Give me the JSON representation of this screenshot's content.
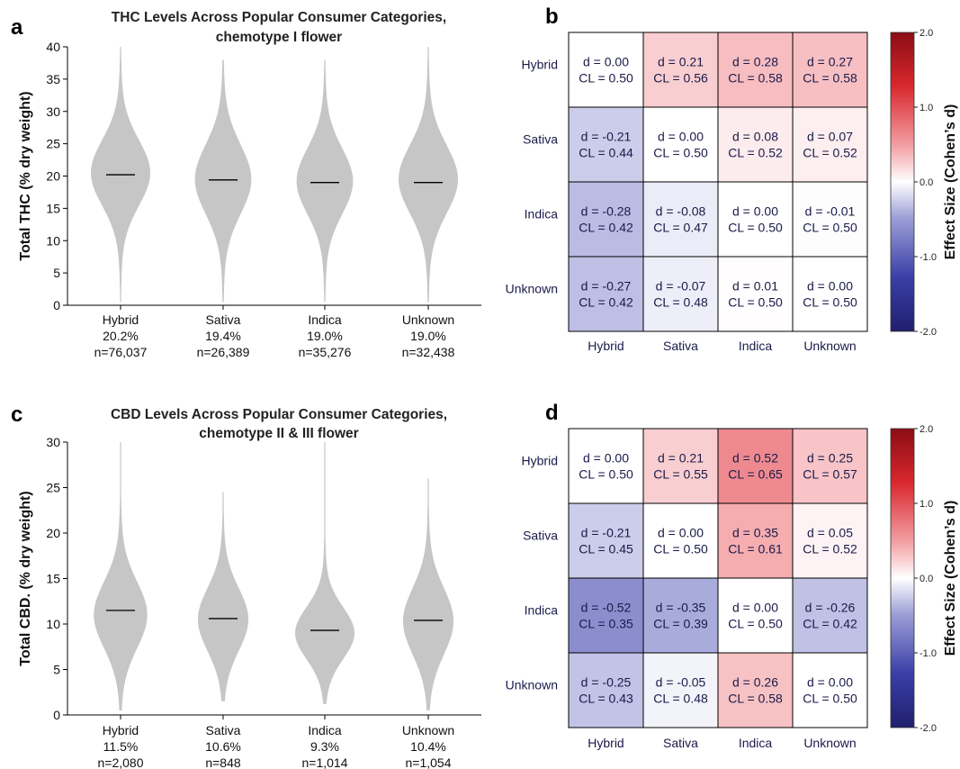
{
  "colors": {
    "violin": "#c6c6c6",
    "median": "#000000",
    "heat_neg": "#1f1f6e",
    "heat_mid": "#ffffff",
    "heat_pos": "#8b0d14",
    "grid": "#000000"
  },
  "chart_data": [
    {
      "type": "violin",
      "panel": "a",
      "title": [
        "THC Levels Across Popular Consumer Categories,",
        "chemotype I flower"
      ],
      "ylabel": "Total THC (% dry weight)",
      "ylim": [
        0,
        40
      ],
      "yticks": [
        0,
        5,
        10,
        15,
        20,
        25,
        30,
        35,
        40
      ],
      "categories": [
        {
          "name": "Hybrid",
          "median_label": "20.2%",
          "n_label": "n=76,037",
          "median": 20.2,
          "min": 0.5,
          "max": 40,
          "peak": 20.5,
          "width": 1.0,
          "spread": 5.0
        },
        {
          "name": "Sativa",
          "median_label": "19.4%",
          "n_label": "n=26,389",
          "median": 19.4,
          "min": 0.5,
          "max": 38,
          "peak": 19.5,
          "width": 0.95,
          "spread": 5.3
        },
        {
          "name": "Indica",
          "median_label": "19.0%",
          "n_label": "n=35,276",
          "median": 19.0,
          "min": 0.5,
          "max": 38,
          "peak": 19.2,
          "width": 0.95,
          "spread": 5.0
        },
        {
          "name": "Unknown",
          "median_label": "19.0%",
          "n_label": "n=32,438",
          "median": 19.0,
          "min": 0.5,
          "max": 40,
          "peak": 19.5,
          "width": 1.0,
          "spread": 5.2
        }
      ]
    },
    {
      "type": "heatmap",
      "panel": "b",
      "rows": [
        "Hybrid",
        "Sativa",
        "Indica",
        "Unknown"
      ],
      "cols": [
        "Hybrid",
        "Sativa",
        "Indica",
        "Unknown"
      ],
      "d": [
        [
          0.0,
          0.21,
          0.28,
          0.27
        ],
        [
          -0.21,
          0.0,
          0.08,
          0.07
        ],
        [
          -0.28,
          -0.08,
          0.0,
          -0.01
        ],
        [
          -0.27,
          -0.07,
          0.01,
          0.0
        ]
      ],
      "cells": [
        [
          "d = 0.00",
          "d = 0.21",
          "d = 0.28",
          "d = 0.27"
        ],
        [
          "d = -0.21",
          "d = 0.00",
          "d = 0.08",
          "d = 0.07"
        ],
        [
          "d = -0.28",
          "d = -0.08",
          "d = 0.00",
          "d = -0.01"
        ],
        [
          "d = -0.27",
          "d = -0.07",
          "d = 0.01",
          "d = 0.00"
        ]
      ],
      "cl": [
        [
          "CL = 0.50",
          "CL = 0.56",
          "CL = 0.58",
          "CL = 0.58"
        ],
        [
          "CL = 0.44",
          "CL = 0.50",
          "CL = 0.52",
          "CL = 0.52"
        ],
        [
          "CL = 0.42",
          "CL = 0.47",
          "CL = 0.50",
          "CL = 0.50"
        ],
        [
          "CL = 0.42",
          "CL = 0.48",
          "CL = 0.50",
          "CL = 0.50"
        ]
      ],
      "colorbar": {
        "label": "Effect Size (Cohen’s d)",
        "vmin": -2.0,
        "vmax": 2.0,
        "ticks": [
          "2.0",
          "1.0",
          "0.0",
          "-1.0",
          "-2.0"
        ]
      }
    },
    {
      "type": "violin",
      "panel": "c",
      "title": [
        "CBD Levels Across Popular Consumer Categories,",
        "chemotype II & III flower"
      ],
      "ylabel": "Total CBD. (% dry weight)",
      "ylim": [
        0,
        30
      ],
      "yticks": [
        0,
        5,
        10,
        15,
        20,
        25,
        30
      ],
      "categories": [
        {
          "name": "Hybrid",
          "median_label": "11.5%",
          "n_label": "n=2,080",
          "median": 11.5,
          "min": 0.5,
          "max": 30,
          "peak": 11.0,
          "width": 0.9,
          "spread": 3.6
        },
        {
          "name": "Sativa",
          "median_label": "10.6%",
          "n_label": "n=848",
          "median": 10.6,
          "min": 1.5,
          "max": 24.5,
          "peak": 10.5,
          "width": 0.85,
          "spread": 3.4
        },
        {
          "name": "Indica",
          "median_label": "9.3%",
          "n_label": "n=1,014",
          "median": 9.3,
          "min": 1.2,
          "max": 30,
          "peak": 9.0,
          "width": 1.0,
          "spread": 2.8
        },
        {
          "name": "Unknown",
          "median_label": "10.4%",
          "n_label": "n=1,054",
          "median": 10.4,
          "min": 0.5,
          "max": 26,
          "peak": 10.3,
          "width": 0.85,
          "spread": 3.6
        }
      ]
    },
    {
      "type": "heatmap",
      "panel": "d",
      "rows": [
        "Hybrid",
        "Sativa",
        "Indica",
        "Unknown"
      ],
      "cols": [
        "Hybrid",
        "Sativa",
        "Indica",
        "Unknown"
      ],
      "d": [
        [
          0.0,
          0.21,
          0.52,
          0.25
        ],
        [
          -0.21,
          0.0,
          0.35,
          0.05
        ],
        [
          -0.52,
          -0.35,
          0.0,
          -0.26
        ],
        [
          -0.25,
          -0.05,
          0.26,
          0.0
        ]
      ],
      "cells": [
        [
          "d = 0.00",
          "d = 0.21",
          "d = 0.52",
          "d = 0.25"
        ],
        [
          "d = -0.21",
          "d = 0.00",
          "d = 0.35",
          "d = 0.05"
        ],
        [
          "d = -0.52",
          "d = -0.35",
          "d = 0.00",
          "d = -0.26"
        ],
        [
          "d = -0.25",
          "d = -0.05",
          "d = 0.26",
          "d = 0.00"
        ]
      ],
      "cl": [
        [
          "CL = 0.50",
          "CL = 0.55",
          "CL = 0.65",
          "CL = 0.57"
        ],
        [
          "CL = 0.45",
          "CL = 0.50",
          "CL = 0.61",
          "CL = 0.52"
        ],
        [
          "CL = 0.35",
          "CL = 0.39",
          "CL = 0.50",
          "CL = 0.42"
        ],
        [
          "CL = 0.43",
          "CL = 0.48",
          "CL = 0.58",
          "CL = 0.50"
        ]
      ],
      "colorbar": {
        "label": "Effect Size (Cohen’s d)",
        "vmin": -2.0,
        "vmax": 2.0,
        "ticks": [
          "2.0",
          "1.0",
          "0.0",
          "-1.0",
          "-2.0"
        ]
      }
    }
  ]
}
